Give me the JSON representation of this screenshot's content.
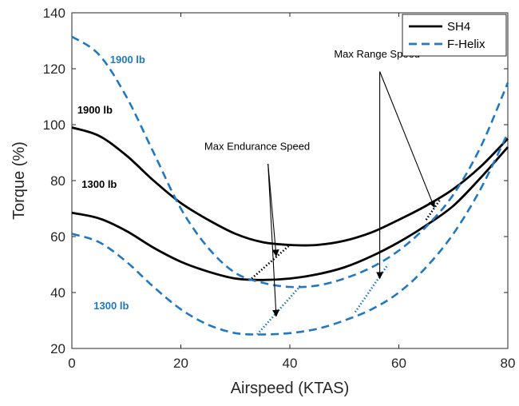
{
  "chart_data": {
    "type": "line",
    "xlabel": "Airspeed (KTAS)",
    "ylabel": "Torque (%)",
    "xlim": [
      0,
      80
    ],
    "ylim": [
      20,
      140
    ],
    "xticks": [
      0,
      20,
      40,
      60,
      80
    ],
    "yticks": [
      20,
      40,
      60,
      80,
      100,
      120,
      140
    ],
    "grid": false,
    "legend_position": "top-right",
    "legend": [
      {
        "label": "SH4",
        "color": "#000000",
        "style": "solid"
      },
      {
        "label": "F-Helix",
        "color": "#1f78c1",
        "style": "dashed"
      }
    ],
    "series": [
      {
        "model": "SH4",
        "weight": "1900 lb",
        "color": "#000000",
        "style": "solid",
        "x": [
          0,
          5,
          10,
          15,
          20,
          25,
          30,
          35,
          40,
          45,
          50,
          55,
          60,
          65,
          70,
          75,
          80
        ],
        "y": [
          99,
          96,
          89,
          80,
          72,
          66,
          61,
          58,
          57,
          57,
          58.5,
          61.5,
          66,
          71,
          77,
          85,
          95
        ]
      },
      {
        "model": "SH4",
        "weight": "1300 lb",
        "color": "#000000",
        "style": "solid",
        "x": [
          0,
          5,
          10,
          15,
          20,
          25,
          30,
          35,
          40,
          45,
          50,
          55,
          60,
          65,
          70,
          75,
          80
        ],
        "y": [
          68.5,
          66.5,
          62,
          56,
          51,
          47.5,
          45,
          44.5,
          45,
          46.5,
          49,
          53,
          58,
          64,
          71,
          81,
          92
        ]
      },
      {
        "model": "F-Helix",
        "weight": "1900 lb",
        "color": "#1f78c1",
        "style": "dashed",
        "x": [
          0,
          5,
          10,
          15,
          20,
          25,
          30,
          35,
          40,
          45,
          50,
          55,
          60,
          65,
          70,
          75,
          80
        ],
        "y": [
          131.5,
          125,
          110,
          90,
          70,
          56,
          47,
          43.5,
          42,
          42.5,
          45,
          49,
          55,
          63.5,
          75,
          92,
          115
        ]
      },
      {
        "model": "F-Helix",
        "weight": "1300 lb",
        "color": "#1f78c1",
        "style": "dashed",
        "x": [
          0,
          5,
          10,
          15,
          20,
          25,
          30,
          35,
          40,
          45,
          50,
          55,
          60,
          65,
          70,
          75,
          80
        ],
        "y": [
          61,
          58,
          51,
          42,
          34,
          28.5,
          25.5,
          25,
          25.5,
          27,
          30,
          34,
          40,
          49,
          61,
          77,
          97
        ]
      }
    ],
    "connector_lines": [
      {
        "color": "#000000",
        "x": [
          33,
          40
        ],
        "y": [
          45,
          57
        ]
      },
      {
        "color": "#000000",
        "x": [
          65,
          67.5
        ],
        "y": [
          66,
          73
        ]
      },
      {
        "color": "#1f78c1",
        "x": [
          34,
          42
        ],
        "y": [
          25,
          42.5
        ]
      },
      {
        "color": "#1f78c1",
        "x": [
          52,
          58
        ],
        "y": [
          33,
          50
        ]
      }
    ],
    "arrows": [
      {
        "group": "endurance",
        "from": [
          36,
          86
        ],
        "to": [
          37.5,
          53
        ]
      },
      {
        "group": "endurance",
        "from": [
          36,
          86
        ],
        "to": [
          37.5,
          31.5
        ]
      },
      {
        "group": "range",
        "from": [
          56.5,
          119
        ],
        "to": [
          56.5,
          45
        ]
      },
      {
        "group": "range",
        "from": [
          56.5,
          119
        ],
        "to": [
          66.5,
          70.5
        ]
      }
    ],
    "annotations": [
      {
        "id": "endurance",
        "text": "Max Endurance Speed",
        "x": 34,
        "y": 91,
        "color": "#000000",
        "weight": "normal"
      },
      {
        "id": "range",
        "text": "Max Range Speed",
        "x": 56,
        "y": 124,
        "color": "#000000",
        "weight": "normal"
      },
      {
        "id": "sh4-1900",
        "text": "1900 lb",
        "x": 1,
        "y": 104,
        "color": "#000000",
        "weight": "bold"
      },
      {
        "id": "sh4-1300",
        "text": "1300 lb",
        "x": 1.8,
        "y": 77.5,
        "color": "#000000",
        "weight": "bold"
      },
      {
        "id": "fh-1900",
        "text": "1900 lb",
        "x": 7,
        "y": 122,
        "color": "#1f78c1",
        "weight": "bold"
      },
      {
        "id": "fh-1300",
        "text": "1300 lb",
        "x": 4,
        "y": 34,
        "color": "#1f78c1",
        "weight": "bold"
      }
    ]
  }
}
